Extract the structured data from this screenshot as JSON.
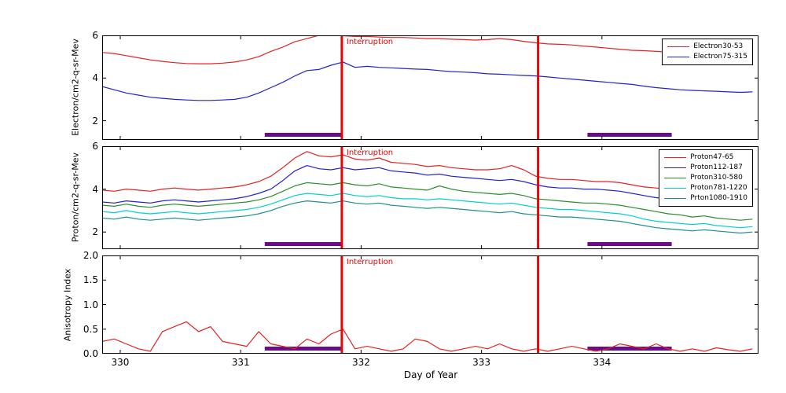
{
  "figure": {
    "background": "#ffffff"
  },
  "chart_data": {
    "type": "line",
    "title": "",
    "xlabel": "Day of Year",
    "xlim": [
      329.85,
      335.3
    ],
    "xticks": [
      "330",
      "331",
      "332",
      "333",
      "334"
    ],
    "grid": false,
    "legend_position": "upper right",
    "interruption_label": "Interruption",
    "interruption_label_color": "#f00000",
    "interruption_lines_x": [
      331.84,
      333.47
    ],
    "vline_color": "#f00000",
    "event_bars_x": [
      [
        331.2,
        331.84
      ],
      [
        333.88,
        334.58
      ]
    ],
    "event_bar_color": "#6a0d8b",
    "x": [
      329.85,
      329.95,
      330.05,
      330.15,
      330.25,
      330.35,
      330.45,
      330.55,
      330.65,
      330.75,
      330.85,
      330.95,
      331.05,
      331.15,
      331.25,
      331.35,
      331.45,
      331.55,
      331.65,
      331.75,
      331.85,
      331.95,
      332.05,
      332.15,
      332.25,
      332.35,
      332.45,
      332.55,
      332.65,
      332.75,
      332.85,
      332.95,
      333.05,
      333.15,
      333.25,
      333.35,
      333.45,
      333.55,
      333.65,
      333.75,
      333.85,
      333.95,
      334.05,
      334.15,
      334.25,
      334.35,
      334.45,
      334.55,
      334.65,
      334.75,
      334.85,
      334.95,
      335.05,
      335.15,
      335.25
    ],
    "panels": [
      {
        "ylabel": "Electron/cm2-q-sr-Mev",
        "ylim": [
          1.1,
          6.0
        ],
        "yticks": [
          "2",
          "4",
          "6"
        ],
        "legend": true,
        "series": [
          {
            "name": "Electron30-53",
            "color": "#e32222",
            "values": [
              5.2,
              5.15,
              5.05,
              4.95,
              4.85,
              4.78,
              4.72,
              4.68,
              4.67,
              4.67,
              4.7,
              4.75,
              4.85,
              5.0,
              5.25,
              5.45,
              5.7,
              5.85,
              6.0,
              6.0,
              5.98,
              5.95,
              5.95,
              5.92,
              5.9,
              5.9,
              5.88,
              5.85,
              5.85,
              5.82,
              5.8,
              5.78,
              5.8,
              5.85,
              5.8,
              5.72,
              5.65,
              5.6,
              5.58,
              5.55,
              5.5,
              5.45,
              5.4,
              5.35,
              5.3,
              5.28,
              5.25,
              5.22,
              5.2,
              5.18,
              5.15,
              5.12,
              5.1,
              5.08,
              5.05
            ]
          },
          {
            "name": "Electron75-315",
            "color": "#2222cc",
            "values": [
              3.6,
              3.45,
              3.3,
              3.2,
              3.1,
              3.05,
              3.0,
              2.97,
              2.95,
              2.95,
              2.97,
              3.0,
              3.1,
              3.3,
              3.55,
              3.8,
              4.1,
              4.35,
              4.4,
              4.6,
              4.75,
              4.5,
              4.55,
              4.5,
              4.48,
              4.45,
              4.42,
              4.4,
              4.35,
              4.3,
              4.28,
              4.25,
              4.2,
              4.18,
              4.15,
              4.12,
              4.1,
              4.05,
              4.0,
              3.95,
              3.9,
              3.85,
              3.8,
              3.75,
              3.7,
              3.62,
              3.55,
              3.5,
              3.45,
              3.42,
              3.4,
              3.38,
              3.35,
              3.33,
              3.35
            ]
          }
        ]
      },
      {
        "ylabel": "Proton/cm2-q-sr-Mev",
        "ylim": [
          1.2,
          6.0
        ],
        "yticks": [
          "2",
          "4",
          "6"
        ],
        "legend": true,
        "series": [
          {
            "name": "Proton47-65",
            "color": "#e32222",
            "values": [
              3.95,
              3.9,
              4.0,
              3.95,
              3.9,
              4.0,
              4.05,
              4.0,
              3.95,
              4.0,
              4.05,
              4.1,
              4.2,
              4.35,
              4.6,
              5.0,
              5.45,
              5.75,
              5.55,
              5.5,
              5.6,
              5.4,
              5.35,
              5.45,
              5.25,
              5.2,
              5.15,
              5.05,
              5.1,
              5.0,
              4.95,
              4.9,
              4.9,
              4.95,
              5.1,
              4.9,
              4.6,
              4.5,
              4.45,
              4.45,
              4.4,
              4.35,
              4.35,
              4.3,
              4.2,
              4.1,
              4.05,
              4.0,
              3.95,
              3.9,
              3.95,
              3.85,
              3.8,
              3.85,
              3.8
            ]
          },
          {
            "name": "Proton112-187",
            "color": "#2222cc",
            "values": [
              3.4,
              3.35,
              3.45,
              3.4,
              3.35,
              3.45,
              3.5,
              3.45,
              3.4,
              3.45,
              3.5,
              3.55,
              3.65,
              3.8,
              4.0,
              4.4,
              4.85,
              5.1,
              4.95,
              4.9,
              5.0,
              4.9,
              4.95,
              5.0,
              4.85,
              4.8,
              4.75,
              4.65,
              4.7,
              4.6,
              4.55,
              4.5,
              4.45,
              4.4,
              4.45,
              4.35,
              4.2,
              4.1,
              4.05,
              4.05,
              4.0,
              4.0,
              3.95,
              3.9,
              3.8,
              3.7,
              3.6,
              3.55,
              3.5,
              3.45,
              3.5,
              3.4,
              3.35,
              3.3,
              3.3
            ]
          },
          {
            "name": "Proton310-580",
            "color": "#2d8b2d",
            "values": [
              3.25,
              3.2,
              3.3,
              3.2,
              3.15,
              3.25,
              3.3,
              3.25,
              3.2,
              3.25,
              3.3,
              3.35,
              3.4,
              3.5,
              3.65,
              3.9,
              4.15,
              4.3,
              4.25,
              4.2,
              4.3,
              4.2,
              4.15,
              4.25,
              4.1,
              4.05,
              4.0,
              3.95,
              4.15,
              4.0,
              3.9,
              3.85,
              3.8,
              3.75,
              3.8,
              3.7,
              3.55,
              3.5,
              3.45,
              3.4,
              3.35,
              3.35,
              3.3,
              3.25,
              3.15,
              3.05,
              2.95,
              2.85,
              2.8,
              2.7,
              2.75,
              2.65,
              2.6,
              2.55,
              2.6
            ]
          },
          {
            "name": "Proton781-1220",
            "color": "#00d0d0",
            "values": [
              2.95,
              2.9,
              3.0,
              2.9,
              2.85,
              2.9,
              2.95,
              2.9,
              2.85,
              2.9,
              2.95,
              3.0,
              3.05,
              3.15,
              3.3,
              3.5,
              3.7,
              3.8,
              3.75,
              3.7,
              3.8,
              3.7,
              3.65,
              3.7,
              3.6,
              3.55,
              3.55,
              3.5,
              3.55,
              3.5,
              3.45,
              3.4,
              3.35,
              3.3,
              3.35,
              3.25,
              3.15,
              3.1,
              3.05,
              3.05,
              3.0,
              2.95,
              2.9,
              2.85,
              2.75,
              2.6,
              2.5,
              2.45,
              2.4,
              2.35,
              2.4,
              2.3,
              2.25,
              2.2,
              2.25
            ]
          },
          {
            "name": "Prton1080-1910",
            "color": "#1f8f8f",
            "values": [
              2.65,
              2.6,
              2.7,
              2.6,
              2.55,
              2.6,
              2.65,
              2.6,
              2.55,
              2.6,
              2.65,
              2.7,
              2.75,
              2.85,
              3.0,
              3.2,
              3.35,
              3.45,
              3.4,
              3.35,
              3.45,
              3.35,
              3.3,
              3.35,
              3.25,
              3.2,
              3.15,
              3.1,
              3.15,
              3.1,
              3.05,
              3.0,
              2.95,
              2.9,
              2.95,
              2.85,
              2.8,
              2.75,
              2.7,
              2.7,
              2.65,
              2.6,
              2.55,
              2.5,
              2.4,
              2.3,
              2.2,
              2.15,
              2.1,
              2.05,
              2.1,
              2.05,
              2.0,
              1.95,
              2.0
            ]
          }
        ]
      },
      {
        "ylabel": "Anisotropy Index",
        "ylim": [
          0.0,
          2.0
        ],
        "yticks": [
          "0.0",
          "0.5",
          "1.0",
          "1.5",
          "2.0"
        ],
        "legend": false,
        "series": [
          {
            "name": "Anisotropy",
            "color": "#e32222",
            "values": [
              0.25,
              0.3,
              0.2,
              0.1,
              0.05,
              0.45,
              0.55,
              0.65,
              0.45,
              0.55,
              0.25,
              0.2,
              0.15,
              0.45,
              0.2,
              0.15,
              0.1,
              0.3,
              0.2,
              0.4,
              0.5,
              0.1,
              0.15,
              0.1,
              0.05,
              0.1,
              0.3,
              0.25,
              0.1,
              0.05,
              0.1,
              0.15,
              0.1,
              0.2,
              0.1,
              0.05,
              0.1,
              0.05,
              0.1,
              0.15,
              0.1,
              0.05,
              0.1,
              0.2,
              0.15,
              0.1,
              0.2,
              0.1,
              0.05,
              0.1,
              0.05,
              0.12,
              0.08,
              0.05,
              0.1
            ]
          }
        ]
      }
    ]
  }
}
